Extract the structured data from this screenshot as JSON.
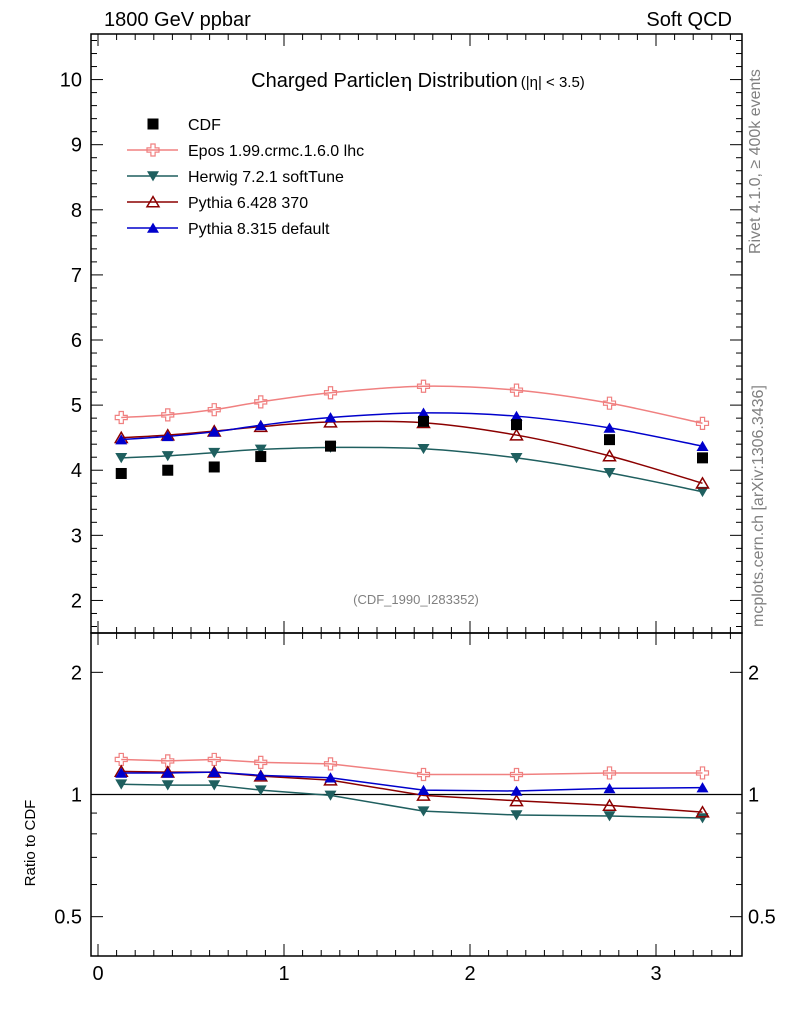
{
  "header": {
    "left": "1800 GeV ppbar",
    "right": "Soft QCD"
  },
  "side_labels": {
    "top": "Rivet 4.1.0, ≥ 400k events",
    "bottom": "mcplots.cern.ch [arXiv:1306.3436]"
  },
  "chart_data": {
    "type": "line",
    "title": "Charged Particle",
    "title_symbol": "η",
    "title_word": " Distribution",
    "title_cut": "(|η| < 3.5)",
    "watermark": "(CDF_1990_I283352)",
    "xlabel": "",
    "ylabel_ratio": "Ratio to CDF",
    "xlim": [
      0,
      3.5
    ],
    "ylim_main": [
      1.5,
      10.7
    ],
    "ylim_ratio_log": [
      0.4,
      2.5
    ],
    "xticks": [
      0,
      1,
      2,
      3
    ],
    "yticks_main": [
      2,
      3,
      4,
      5,
      6,
      7,
      8,
      9,
      10
    ],
    "yticks_ratio": [
      0.5,
      1,
      2
    ],
    "ytick_labels_ratio": [
      "0.5",
      "1",
      "2"
    ],
    "x": [
      0.125,
      0.375,
      0.625,
      0.875,
      1.25,
      1.75,
      2.25,
      2.75,
      3.25
    ],
    "data": {
      "name": "CDF",
      "values": [
        3.95,
        4.0,
        4.05,
        4.21,
        4.37,
        4.75,
        4.7,
        4.47,
        4.19
      ]
    },
    "series": [
      {
        "name": "Epos 1.99.crmc.1.6.0 lhc",
        "color": "#f08080",
        "marker": "plus-open",
        "values": [
          4.81,
          4.85,
          4.93,
          5.05,
          5.19,
          5.29,
          5.23,
          5.03,
          4.72
        ],
        "ratio": [
          1.22,
          1.21,
          1.22,
          1.2,
          1.19,
          1.12,
          1.12,
          1.13,
          1.13
        ]
      },
      {
        "name": "Herwig 7.2.1 softTune",
        "color": "#1f5f5f",
        "marker": "triangle-down",
        "values": [
          4.19,
          4.22,
          4.27,
          4.32,
          4.35,
          4.33,
          4.19,
          3.96,
          3.67
        ],
        "ratio": [
          1.06,
          1.055,
          1.055,
          1.025,
          0.995,
          0.91,
          0.89,
          0.885,
          0.875
        ]
      },
      {
        "name": "Pythia 6.428 370",
        "color": "#8b0000",
        "marker": "triangle-up-open",
        "values": [
          4.5,
          4.54,
          4.6,
          4.67,
          4.74,
          4.73,
          4.54,
          4.22,
          3.8
        ],
        "ratio": [
          1.14,
          1.135,
          1.135,
          1.11,
          1.085,
          0.995,
          0.965,
          0.94,
          0.905
        ]
      },
      {
        "name": "Pythia 8.315 default",
        "color": "#0000cc",
        "marker": "triangle-up",
        "values": [
          4.47,
          4.52,
          4.59,
          4.69,
          4.81,
          4.88,
          4.83,
          4.65,
          4.37
        ],
        "ratio": [
          1.13,
          1.13,
          1.135,
          1.115,
          1.1,
          1.025,
          1.02,
          1.035,
          1.04
        ]
      }
    ]
  }
}
